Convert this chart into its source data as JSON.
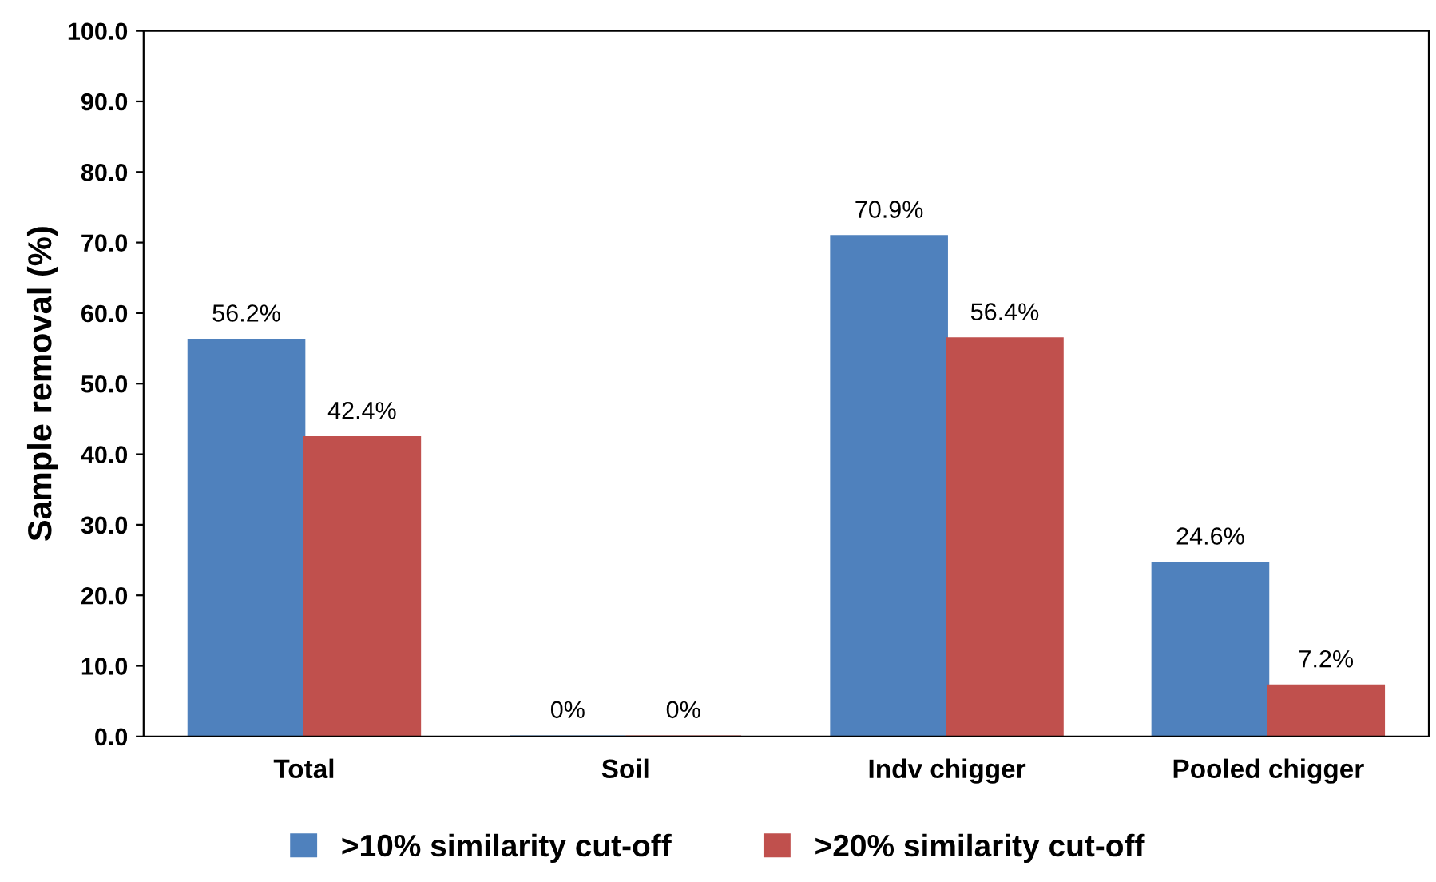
{
  "chart_data": {
    "type": "bar",
    "ylabel": "Sample removal (%)",
    "categories": [
      "Total",
      "Soil",
      "Indv chigger",
      "Pooled chigger"
    ],
    "series": [
      {
        "name": ">10% similarity cut-off",
        "color": "#4f81bd",
        "values": [
          56.2,
          0,
          70.9,
          24.6
        ],
        "value_labels": [
          "56.2%",
          "0%",
          "70.9%",
          "24.6%"
        ]
      },
      {
        "name": ">20% similarity cut-off",
        "color": "#c0504d",
        "values": [
          42.4,
          0,
          56.4,
          7.2
        ],
        "value_labels": [
          "42.4%",
          "0%",
          "56.4%",
          "7.2%"
        ]
      }
    ],
    "ylim": [
      0,
      100
    ],
    "yticks": [
      {
        "value": 0,
        "label": "0.0"
      },
      {
        "value": 10,
        "label": "10.0"
      },
      {
        "value": 20,
        "label": "20.0"
      },
      {
        "value": 30,
        "label": "30.0"
      },
      {
        "value": 40,
        "label": "40.0"
      },
      {
        "value": 50,
        "label": "50.0"
      },
      {
        "value": 60,
        "label": "60.0"
      },
      {
        "value": 70,
        "label": "70.0"
      },
      {
        "value": 80,
        "label": "80.0"
      },
      {
        "value": 90,
        "label": "90.0"
      },
      {
        "value": 100,
        "label": "100.0"
      }
    ],
    "grid": false,
    "legend": "bottom"
  }
}
